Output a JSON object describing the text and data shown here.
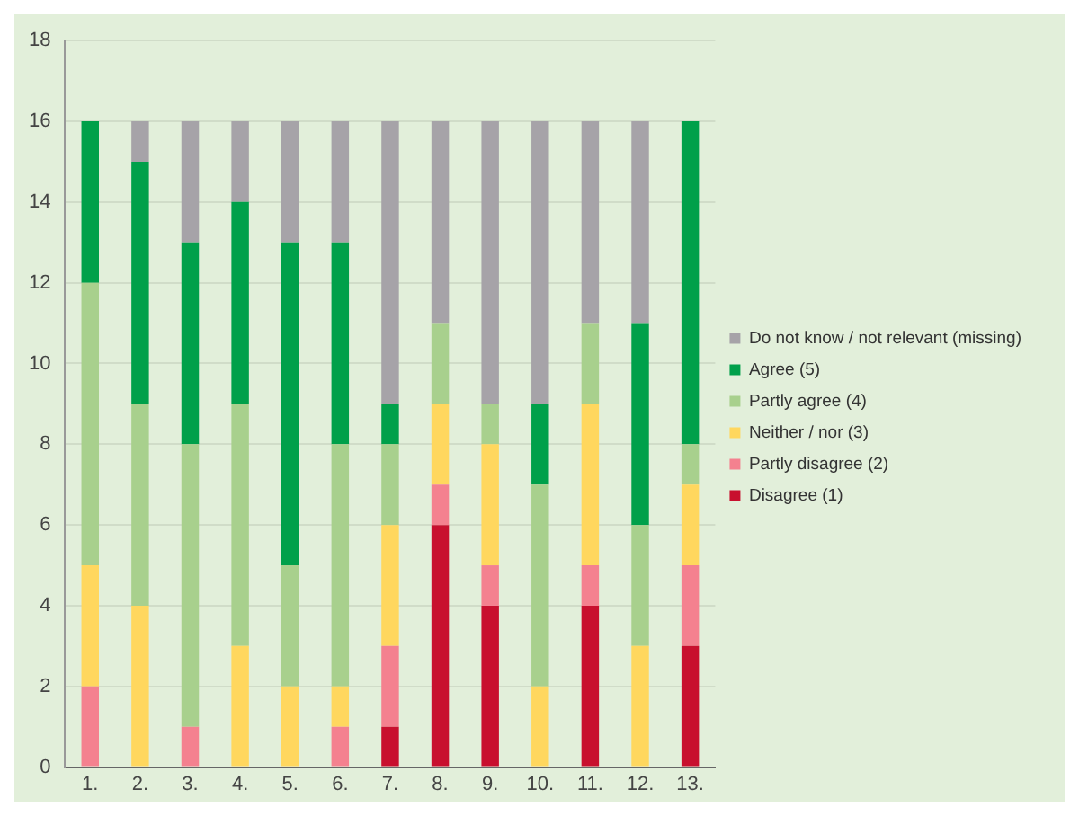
{
  "chart_data": {
    "type": "bar",
    "stacked": true,
    "categories": [
      "1.",
      "2.",
      "3.",
      "4.",
      "5.",
      "6.",
      "7.",
      "8.",
      "9.",
      "10.",
      "11.",
      "12.",
      "13."
    ],
    "series": [
      {
        "name": "Disagree (1)",
        "color": "#c8102e",
        "values": [
          0,
          0,
          0,
          0,
          0,
          0,
          1,
          6,
          4,
          0,
          4,
          0,
          3
        ]
      },
      {
        "name": "Partly disagree (2)",
        "color": "#f4818f",
        "values": [
          2,
          0,
          1,
          0,
          0,
          1,
          2,
          1,
          1,
          0,
          1,
          0,
          2
        ]
      },
      {
        "name": "Neither / nor (3)",
        "color": "#ffd75e",
        "values": [
          3,
          4,
          0,
          3,
          2,
          1,
          3,
          2,
          3,
          2,
          4,
          3,
          2
        ]
      },
      {
        "name": "Partly agree (4)",
        "color": "#a8d08d",
        "values": [
          7,
          5,
          7,
          6,
          3,
          6,
          2,
          2,
          1,
          5,
          2,
          3,
          1
        ]
      },
      {
        "name": "Agree (5)",
        "color": "#00a04a",
        "values": [
          4,
          6,
          5,
          5,
          8,
          5,
          1,
          0,
          0,
          2,
          0,
          5,
          8
        ]
      },
      {
        "name": "Do not know / not relevant (missing)",
        "color": "#a6a3a8",
        "values": [
          0,
          1,
          3,
          2,
          3,
          3,
          7,
          5,
          7,
          7,
          5,
          5,
          0
        ]
      }
    ],
    "ylim": [
      0,
      18
    ],
    "yticks": [
      0,
      2,
      4,
      6,
      8,
      10,
      12,
      14,
      16,
      18
    ],
    "grid": "y",
    "legend": "right"
  }
}
